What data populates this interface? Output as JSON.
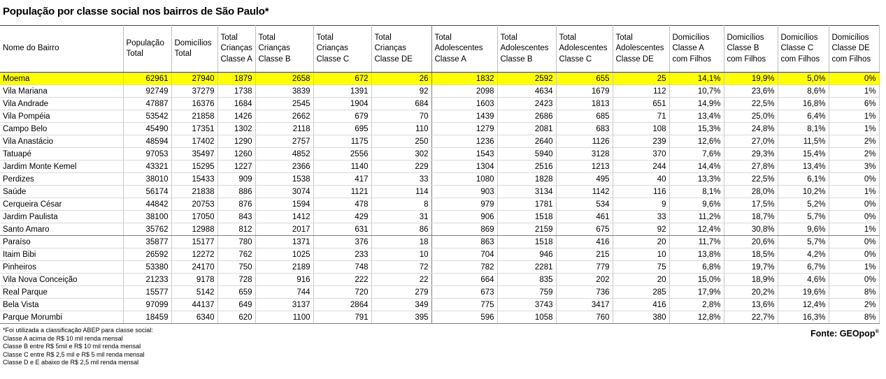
{
  "title": "População por classe social nos bairros de São Paulo*",
  "chart_data": {
    "type": "table",
    "title": "População por classe social nos bairros de São Paulo*",
    "highlighted_row": "Moema",
    "columns": [
      {
        "id": "nome-do-bairro",
        "label_lines": [
          "Nome do Bairro"
        ]
      },
      {
        "id": "populacao-total",
        "label_lines": [
          "População",
          "Total"
        ]
      },
      {
        "id": "domicilios-total",
        "label_lines": [
          "Domicílios",
          "Total"
        ]
      },
      {
        "id": "criancas-a",
        "label_lines": [
          "Total",
          "Crianças",
          "Classe A"
        ]
      },
      {
        "id": "criancas-b",
        "label_lines": [
          "Total",
          "Crianças",
          "Classe B"
        ]
      },
      {
        "id": "criancas-c",
        "label_lines": [
          "Total",
          "Crianças",
          "Classe C"
        ]
      },
      {
        "id": "criancas-de",
        "label_lines": [
          "Total",
          "Crianças",
          "Classe DE"
        ]
      },
      {
        "id": "adolescentes-a",
        "label_lines": [
          "Total",
          "Adolescentes",
          "Classe A"
        ]
      },
      {
        "id": "adolescentes-b",
        "label_lines": [
          "Total",
          "Adolescentes",
          "Classe B"
        ]
      },
      {
        "id": "adolescentes-c",
        "label_lines": [
          "Total",
          "Adolescentes",
          "Classe C"
        ]
      },
      {
        "id": "adolescentes-de",
        "label_lines": [
          "Total",
          "Adolescentes",
          "Classe DE"
        ]
      },
      {
        "id": "dom-a-filhos",
        "label_lines": [
          "Domicílios",
          "Classe A",
          "com Filhos"
        ]
      },
      {
        "id": "dom-b-filhos",
        "label_lines": [
          "Domicílios",
          "Classe B",
          "com Filhos"
        ]
      },
      {
        "id": "dom-c-filhos",
        "label_lines": [
          "Domicílios",
          "Classe C",
          "com Filhos"
        ]
      },
      {
        "id": "dom-de-filhos",
        "label_lines": [
          "Domicílios",
          "Classe DE",
          "com Filhos"
        ]
      }
    ],
    "rows": [
      {
        "name": "Moema",
        "highlight": true,
        "values": [
          "62961",
          "27940",
          "1879",
          "2658",
          "672",
          "26",
          "1832",
          "2592",
          "655",
          "25",
          "14,1%",
          "19,9%",
          "5,0%",
          "0%"
        ]
      },
      {
        "name": "Vila Mariana",
        "highlight": false,
        "values": [
          "92749",
          "37279",
          "1738",
          "3839",
          "1391",
          "92",
          "2098",
          "4634",
          "1679",
          "112",
          "10,7%",
          "23,6%",
          "8,6%",
          "1%"
        ]
      },
      {
        "name": "Vila Andrade",
        "highlight": false,
        "values": [
          "47887",
          "16376",
          "1684",
          "2545",
          "1904",
          "684",
          "1603",
          "2423",
          "1813",
          "651",
          "14,9%",
          "22,5%",
          "16,8%",
          "6%"
        ]
      },
      {
        "name": "Vila Pompéia",
        "highlight": false,
        "values": [
          "53542",
          "21858",
          "1426",
          "2662",
          "679",
          "70",
          "1439",
          "2686",
          "685",
          "71",
          "13,4%",
          "25,0%",
          "6,4%",
          "1%"
        ]
      },
      {
        "name": "Campo Belo",
        "highlight": false,
        "values": [
          "45490",
          "17351",
          "1302",
          "2118",
          "695",
          "110",
          "1279",
          "2081",
          "683",
          "108",
          "15,3%",
          "24,8%",
          "8,1%",
          "1%"
        ]
      },
      {
        "name": "Vila Anastácio",
        "highlight": false,
        "values": [
          "48594",
          "17402",
          "1290",
          "2757",
          "1175",
          "250",
          "1236",
          "2640",
          "1126",
          "239",
          "12,6%",
          "27,0%",
          "11,5%",
          "2%"
        ]
      },
      {
        "name": "Tatuapé",
        "highlight": false,
        "values": [
          "97053",
          "35497",
          "1260",
          "4852",
          "2556",
          "302",
          "1543",
          "5940",
          "3128",
          "370",
          "7,6%",
          "29,3%",
          "15,4%",
          "2%"
        ]
      },
      {
        "name": "Jardim Monte Kemel",
        "highlight": false,
        "values": [
          "43321",
          "15295",
          "1227",
          "2366",
          "1140",
          "229",
          "1304",
          "2516",
          "1213",
          "244",
          "14,4%",
          "27,8%",
          "13,4%",
          "3%"
        ]
      },
      {
        "name": "Perdizes",
        "highlight": false,
        "values": [
          "38010",
          "15433",
          "909",
          "1538",
          "417",
          "33",
          "1080",
          "1828",
          "495",
          "40",
          "13,3%",
          "22,5%",
          "6,1%",
          "0%"
        ]
      },
      {
        "name": "Saúde",
        "highlight": false,
        "values": [
          "56174",
          "21838",
          "886",
          "3074",
          "1121",
          "114",
          "903",
          "3134",
          "1142",
          "116",
          "8,1%",
          "28,0%",
          "10,2%",
          "1%"
        ]
      },
      {
        "name": "Cerqueira César",
        "highlight": false,
        "values": [
          "44842",
          "20753",
          "876",
          "1594",
          "478",
          "8",
          "979",
          "1781",
          "534",
          "9",
          "9,6%",
          "17,5%",
          "5,2%",
          "0%"
        ]
      },
      {
        "name": "Jardim Paulista",
        "highlight": false,
        "values": [
          "38100",
          "17050",
          "843",
          "1412",
          "429",
          "31",
          "906",
          "1518",
          "461",
          "33",
          "11,2%",
          "18,7%",
          "5,7%",
          "0%"
        ]
      },
      {
        "name": "Santo Amaro",
        "highlight": false,
        "values": [
          "35762",
          "12988",
          "812",
          "2017",
          "631",
          "86",
          "869",
          "2159",
          "675",
          "92",
          "12,4%",
          "30,8%",
          "9,6%",
          "1%"
        ]
      },
      {
        "name": "Paraíso",
        "highlight": false,
        "values": [
          "35877",
          "15177",
          "780",
          "1371",
          "376",
          "18",
          "863",
          "1518",
          "416",
          "20",
          "11,7%",
          "20,6%",
          "5,7%",
          "0%"
        ]
      },
      {
        "name": "Itaim Bibi",
        "highlight": false,
        "values": [
          "26592",
          "12272",
          "762",
          "1025",
          "233",
          "10",
          "704",
          "946",
          "215",
          "10",
          "13,8%",
          "18,5%",
          "4,2%",
          "0%"
        ]
      },
      {
        "name": "Pinheiros",
        "highlight": false,
        "values": [
          "53380",
          "24170",
          "750",
          "2189",
          "748",
          "72",
          "782",
          "2281",
          "779",
          "75",
          "6,8%",
          "19,7%",
          "6,7%",
          "1%"
        ]
      },
      {
        "name": "Vila Nova Conceição",
        "highlight": false,
        "values": [
          "21233",
          "9178",
          "728",
          "916",
          "222",
          "22",
          "664",
          "835",
          "202",
          "20",
          "15,0%",
          "18,9%",
          "4,6%",
          "0%"
        ]
      },
      {
        "name": "Real Parque",
        "highlight": false,
        "values": [
          "15577",
          "5142",
          "659",
          "744",
          "720",
          "279",
          "673",
          "759",
          "736",
          "285",
          "17,9%",
          "20,2%",
          "19,6%",
          "8%"
        ]
      },
      {
        "name": "Bela Vista",
        "highlight": false,
        "values": [
          "97099",
          "44137",
          "649",
          "3137",
          "2864",
          "349",
          "775",
          "3743",
          "3417",
          "416",
          "2,8%",
          "13,6%",
          "12,4%",
          "2%"
        ]
      },
      {
        "name": "Parque Morumbi",
        "highlight": false,
        "values": [
          "18459",
          "6340",
          "620",
          "1100",
          "791",
          "395",
          "596",
          "1058",
          "760",
          "380",
          "12,8%",
          "22,7%",
          "16,3%",
          "8%"
        ]
      }
    ]
  },
  "footnotes": [
    "*Foi utilizada a classificação ABEP para classe social:",
    "Classe A acima de R$ 10 mil renda mensal",
    "Classe B entre R$ 5mil e R$ 10 mil renda mensal",
    "Classe C entre R$ 2,5 mil e  R$ 5 mil renda mensal",
    "Classe D e E abaixo de R$ 2,5 mil renda mensal"
  ],
  "source": {
    "text": "Fonte: GEOpop",
    "registered_mark": "®"
  },
  "colors": {
    "highlight": "#FFFF00",
    "header_border": "#404040",
    "grid_line": "#D9D9D9"
  }
}
